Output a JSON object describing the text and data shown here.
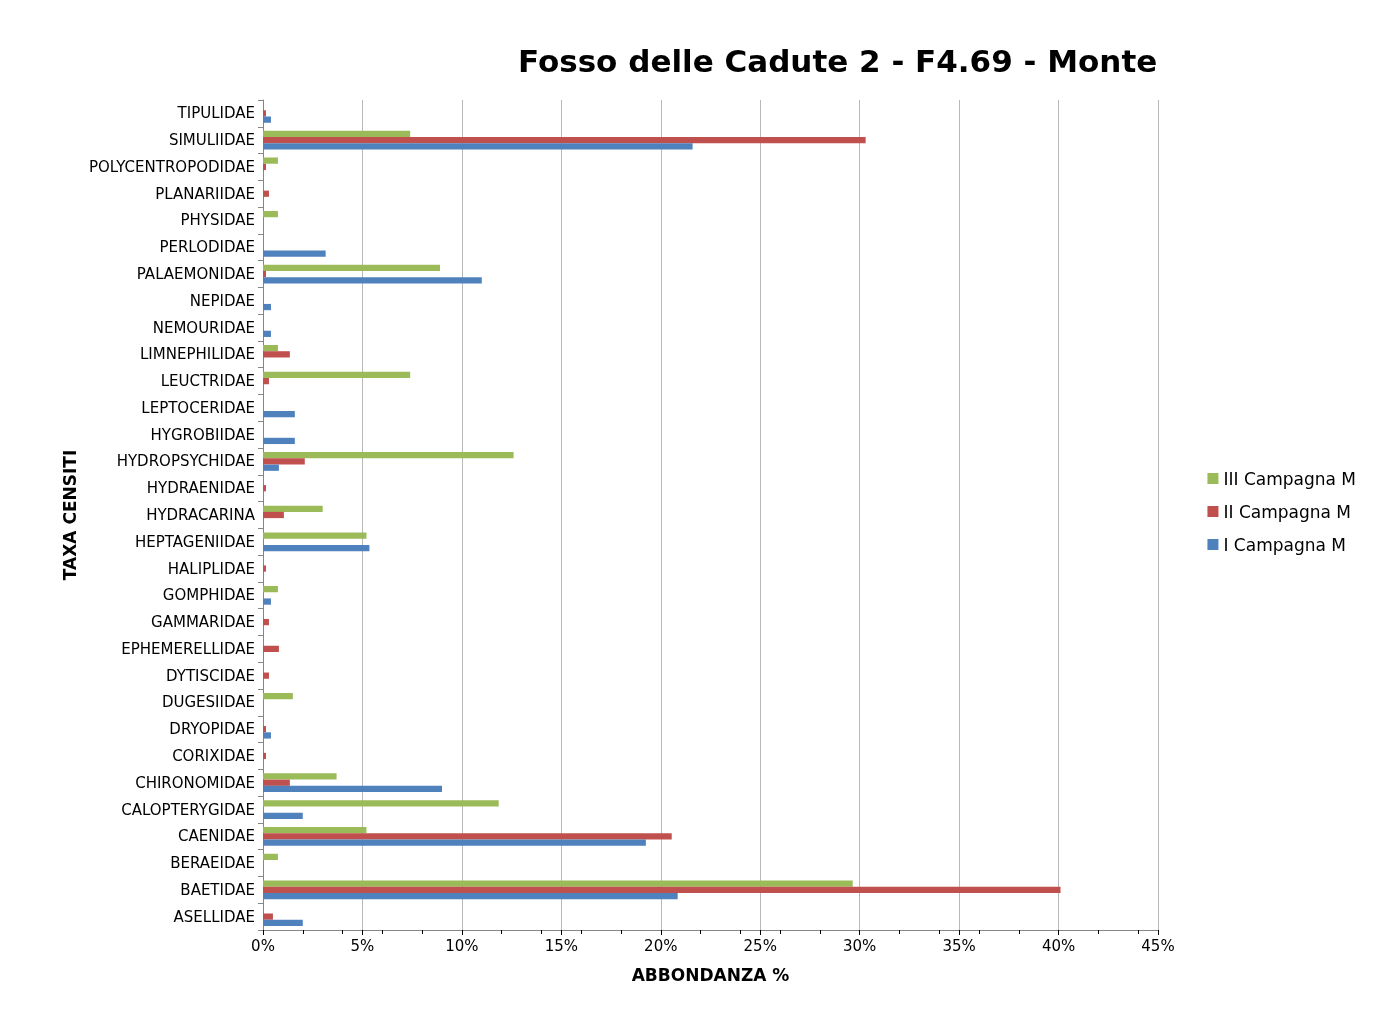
{
  "chart_data": {
    "type": "bar",
    "orientation": "horizontal",
    "title": "Fosso delle Cadute 2 - F4.69 - Monte",
    "xlabel": "ABBONDANZA %",
    "ylabel": "TAXA CENSITI",
    "categories": [
      "TIPULIDAE",
      "SIMULIIDAE",
      "POLYCENTROPODIDAE",
      "PLANARIIDAE",
      "PHYSIDAE",
      "PERLODIDAE",
      "PALAEMONIDAE",
      "NEPIDAE",
      "NEMOURIDAE",
      "LIMNEPHILIDAE",
      "LEUCTRIDAE",
      "LEPTOCERIDAE",
      "HYGROBIIDAE",
      "HYDROPSYCHIDAE",
      "HYDRAENIDAE",
      "HYDRACARINA",
      "HEPTAGENIIDAE",
      "HALIPLIDAE",
      "GOMPHIDAE",
      "GAMMARIDAE",
      "EPHEMERELLIDAE",
      "DYTISCIDAE",
      "DUGESIIDAE",
      "DRYOPIDAE",
      "CORIXIDAE",
      "CHIRONOMIDAE",
      "CALOPTERYGIDAE",
      "CAENIDAE",
      "BERAEIDAE",
      "BAETIDAE",
      "ASELLIDAE"
    ],
    "series": [
      {
        "name": "III Campagna M",
        "color": "#9bbb59",
        "values": [
          null,
          7.4,
          0.75,
          null,
          0.75,
          null,
          8.9,
          null,
          null,
          0.75,
          7.4,
          null,
          null,
          12.6,
          null,
          3.0,
          5.2,
          null,
          0.75,
          null,
          null,
          null,
          1.5,
          null,
          null,
          3.7,
          11.85,
          5.2,
          0.75,
          29.65,
          null
        ]
      },
      {
        "name": "II Campagna M",
        "color": "#c0504d",
        "values": [
          0.15,
          30.3,
          0.15,
          0.3,
          null,
          null,
          0.15,
          null,
          null,
          1.35,
          0.3,
          null,
          null,
          2.1,
          0.15,
          1.05,
          null,
          0.15,
          null,
          0.3,
          0.8,
          0.3,
          null,
          0.15,
          0.15,
          1.35,
          null,
          20.55,
          null,
          40.1,
          0.5
        ]
      },
      {
        "name": "I Campagna M",
        "color": "#4f81bd",
        "values": [
          0.4,
          21.6,
          null,
          null,
          null,
          3.15,
          11.0,
          0.4,
          0.4,
          null,
          null,
          1.6,
          1.6,
          0.8,
          null,
          null,
          5.35,
          null,
          0.4,
          null,
          null,
          null,
          null,
          0.4,
          null,
          9.0,
          2.0,
          19.25,
          null,
          20.85,
          2.0
        ]
      }
    ],
    "xlim": [
      0,
      45
    ],
    "xticks": [
      {
        "value": 0,
        "label": "0%"
      },
      {
        "value": 5,
        "label": "5%"
      },
      {
        "value": 10,
        "label": "10%"
      },
      {
        "value": 15,
        "label": "15%"
      },
      {
        "value": 20,
        "label": "20%"
      },
      {
        "value": 25,
        "label": "25%"
      },
      {
        "value": 30,
        "label": "30%"
      },
      {
        "value": 35,
        "label": "35%"
      },
      {
        "value": 40,
        "label": "40%"
      },
      {
        "value": 45,
        "label": "45%"
      }
    ],
    "grid": "x",
    "legend": "right"
  }
}
